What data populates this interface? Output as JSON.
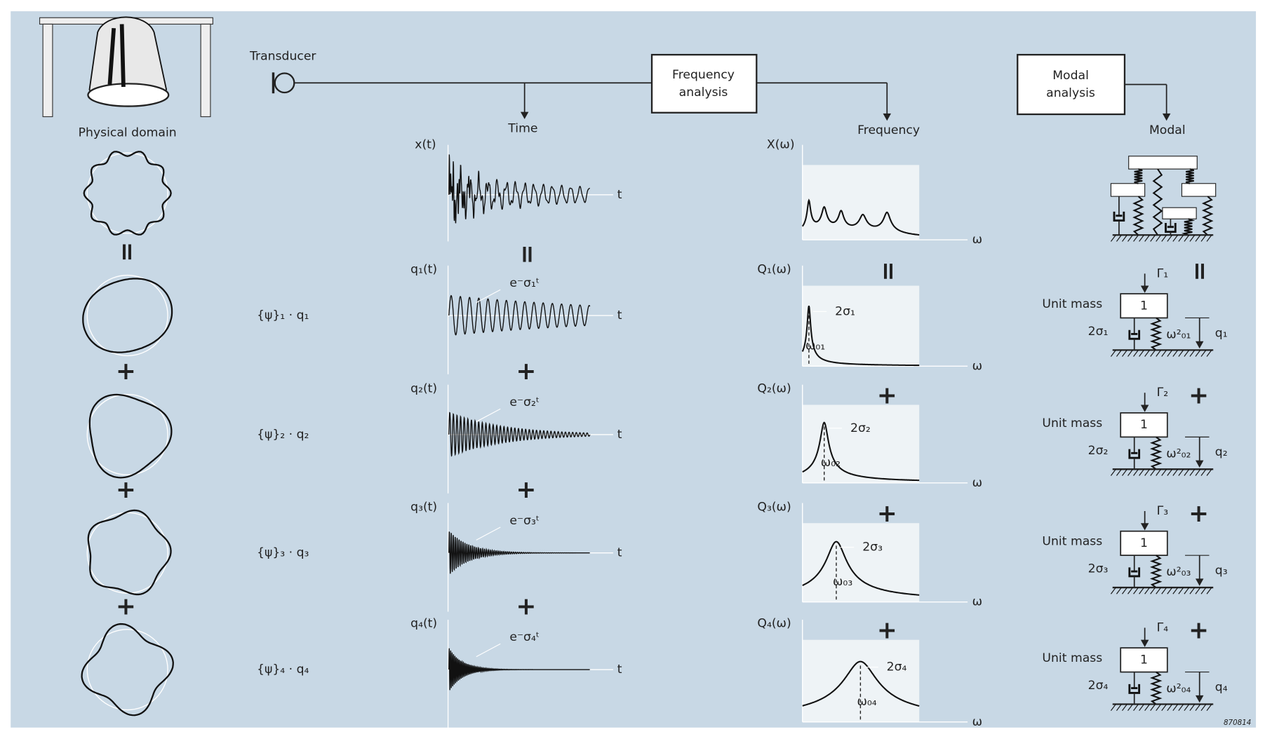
{
  "header": {
    "transducer": "Transducer",
    "frequency_analysis": [
      "Frequency",
      "analysis"
    ],
    "modal_analysis": [
      "Modal",
      "analysis"
    ]
  },
  "columns": {
    "physical": "Physical domain",
    "time": "Time",
    "frequency": "Frequency",
    "modal": "Modal"
  },
  "combined": {
    "time_label": "x(t)",
    "freq_label": "X(ω)"
  },
  "axes": {
    "t": "t",
    "omega": "ω"
  },
  "operators": {
    "equals": "=",
    "plus": "+"
  },
  "unit_mass": "Unit mass",
  "mass": "1",
  "modes": [
    {
      "shape_label": "{ψ}₁ · q₁",
      "time_label": "q₁(t)",
      "decay": "e⁻σ₁ᵗ",
      "freq_label": "Q₁(ω)",
      "bandwidth": "2σ₁",
      "peak": "ω₀₁",
      "force": "Γ₁",
      "damping": "2σ₁",
      "stiffness": "ω²₀₁",
      "displacement": "q₁"
    },
    {
      "shape_label": "{ψ}₂ · q₂",
      "time_label": "q₂(t)",
      "decay": "e⁻σ₂ᵗ",
      "freq_label": "Q₂(ω)",
      "bandwidth": "2σ₂",
      "peak": "ω₀₂",
      "force": "Γ₂",
      "damping": "2σ₂",
      "stiffness": "ω²₀₂",
      "displacement": "q₂"
    },
    {
      "shape_label": "{ψ}₃ · q₃",
      "time_label": "q₃(t)",
      "decay": "e⁻σ₃ᵗ",
      "freq_label": "Q₃(ω)",
      "bandwidth": "2σ₃",
      "peak": "ω₀₃",
      "force": "Γ₃",
      "damping": "2σ₃",
      "stiffness": "ω²₀₃",
      "displacement": "q₃"
    },
    {
      "shape_label": "{ψ}₄ · q₄",
      "time_label": "q₄(t)",
      "decay": "e⁻σ₄ᵗ",
      "freq_label": "Q₄(ω)",
      "bandwidth": "2σ₄",
      "peak": "ω₀₄",
      "force": "Γ₄",
      "damping": "2σ₄",
      "stiffness": "ω²₀₄",
      "displacement": "q₄"
    }
  ],
  "figure_id": "870814"
}
